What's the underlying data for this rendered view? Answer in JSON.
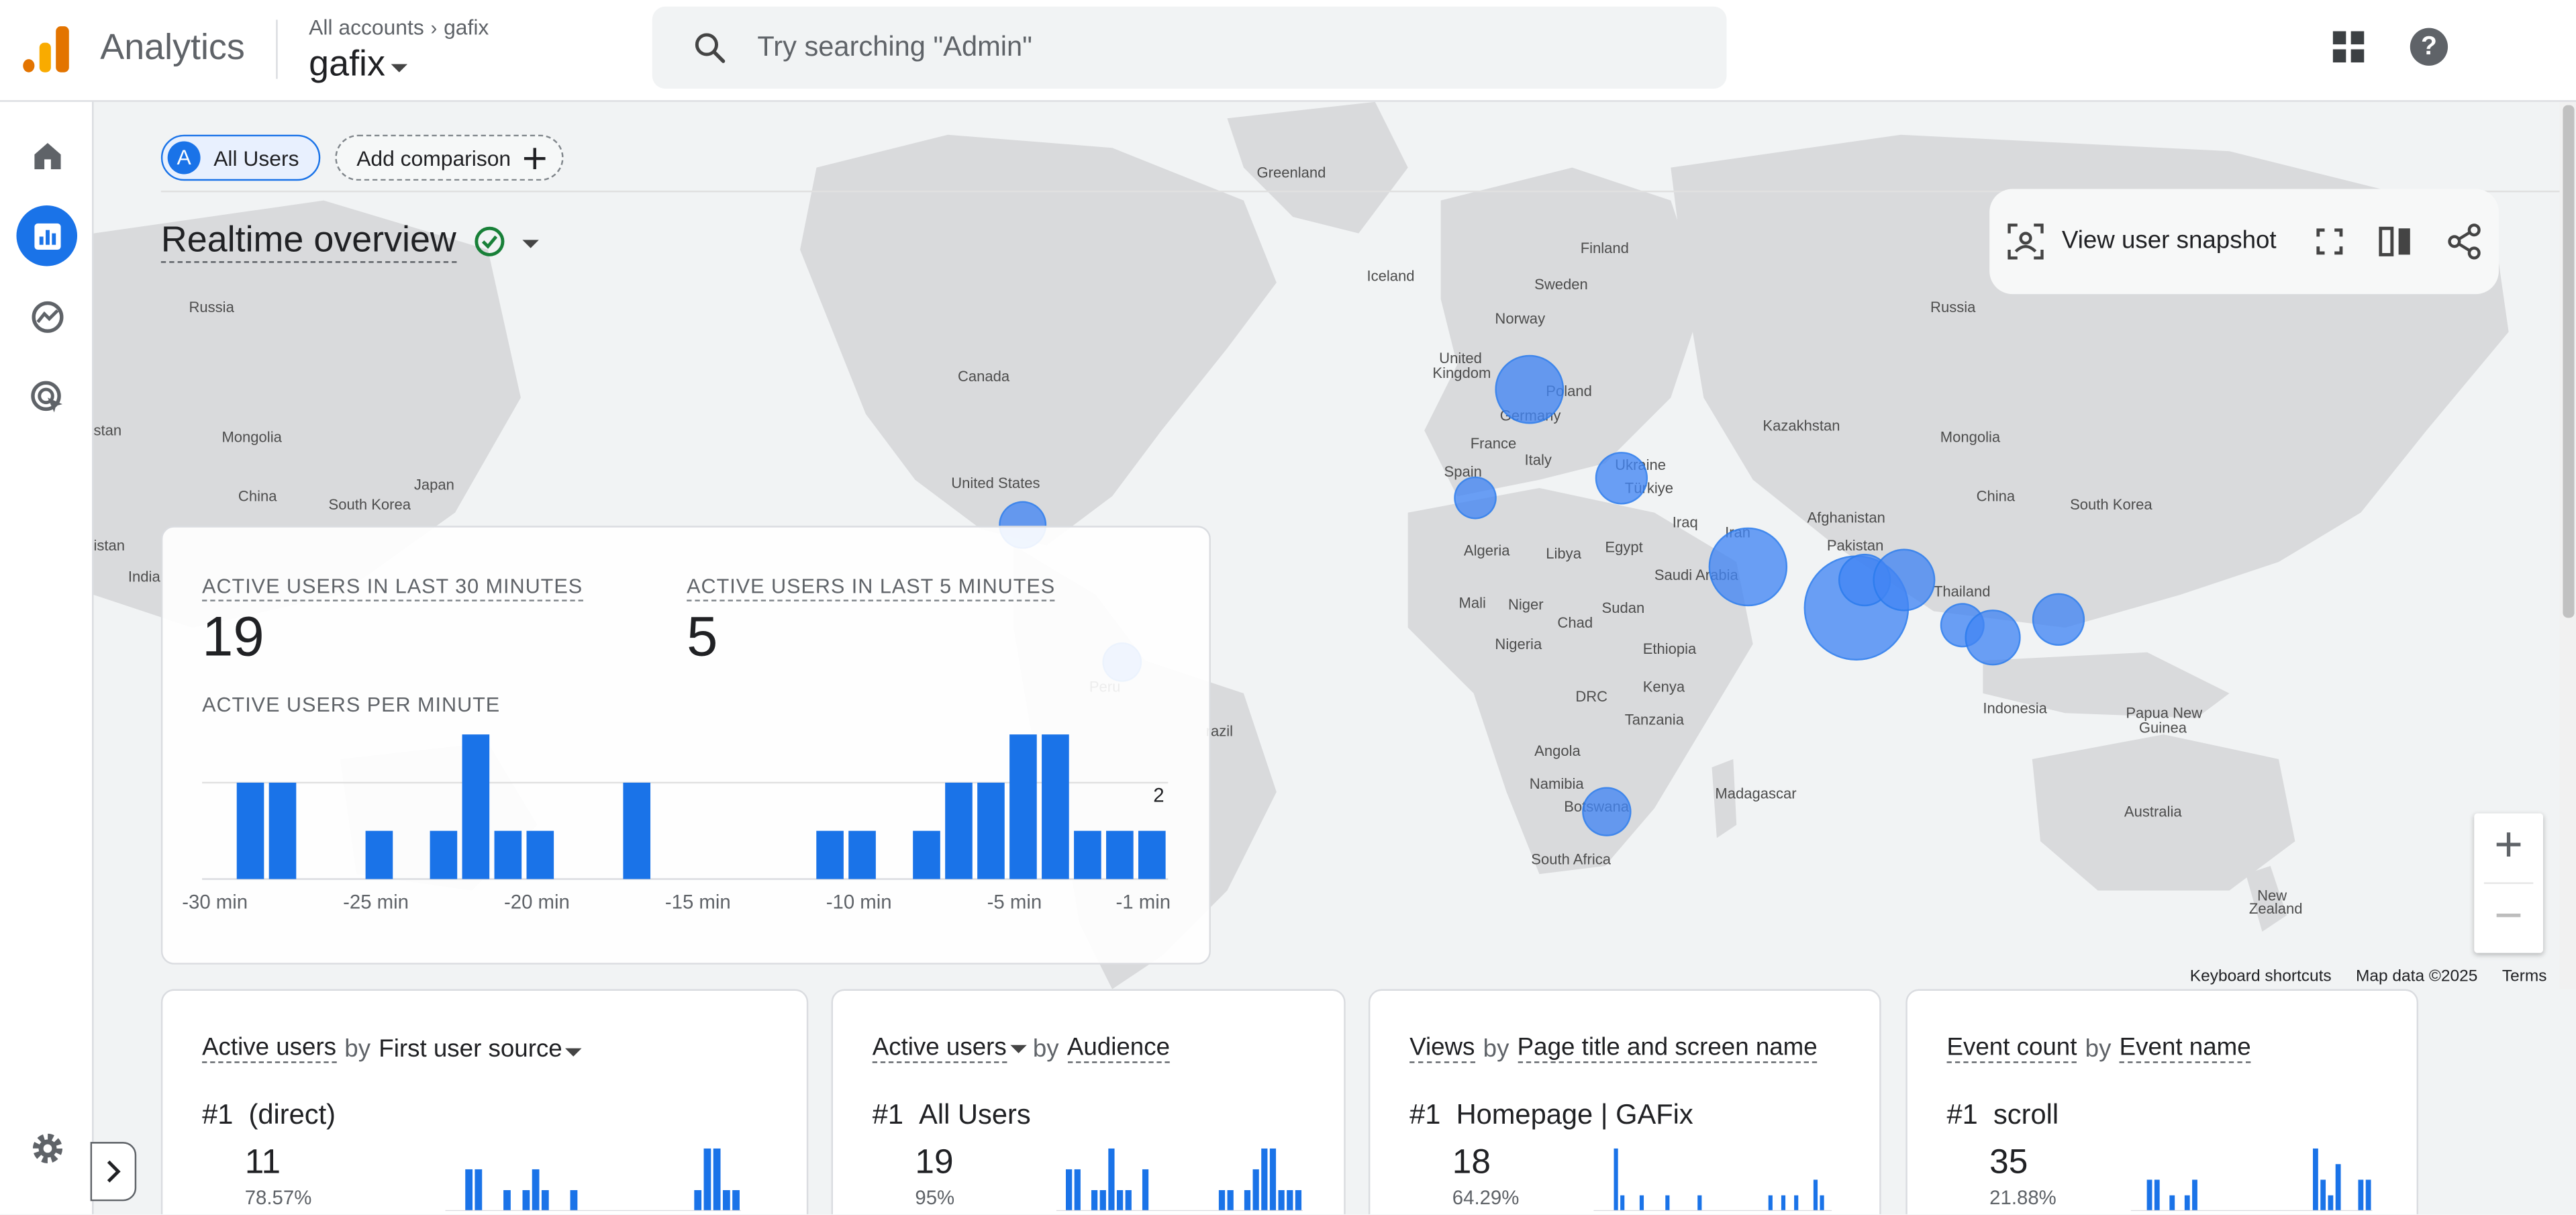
{
  "header": {
    "app_name": "Analytics",
    "breadcrumb_accounts": "All accounts",
    "breadcrumb_account": "gafix",
    "property": "gafix",
    "search_placeholder": "Try searching \"Admin\""
  },
  "nav": {
    "items": [
      "home-icon",
      "reports-icon",
      "explore-icon",
      "advertising-icon"
    ],
    "active": "reports-icon",
    "settings_icon": "gear-icon",
    "expand_icon": "chevron-right-icon"
  },
  "filters": {
    "comparison_badge": "A",
    "comparison": "All Users",
    "add_comparison": "Add comparison"
  },
  "page": {
    "title": "Realtime overview",
    "view_user_snapshot": "View user snapshot"
  },
  "map": {
    "labels": [
      {
        "text": "Greenland"
      },
      {
        "text": "Russia"
      },
      {
        "text": "Russia"
      },
      {
        "text": "Iceland"
      },
      {
        "text": "Finland"
      },
      {
        "text": "Sweden"
      },
      {
        "text": "Norway"
      },
      {
        "text": "United"
      },
      {
        "text": "Kingdom"
      },
      {
        "text": "Poland"
      },
      {
        "text": "Germany"
      },
      {
        "text": "France"
      },
      {
        "text": "Italy"
      },
      {
        "text": "Spain"
      },
      {
        "text": "Ukraine"
      },
      {
        "text": "Türkiye"
      },
      {
        "text": "Kazakhstan"
      },
      {
        "text": "Mongolia"
      },
      {
        "text": "Mongolia"
      },
      {
        "text": "China"
      },
      {
        "text": "China"
      },
      {
        "text": "Japan"
      },
      {
        "text": "South Korea"
      },
      {
        "text": "South Korea"
      },
      {
        "text": "Canada"
      },
      {
        "text": "United States"
      },
      {
        "text": "Algeria"
      },
      {
        "text": "Libya"
      },
      {
        "text": "Egypt"
      },
      {
        "text": "Iraq"
      },
      {
        "text": "Iran"
      },
      {
        "text": "Afghanistan"
      },
      {
        "text": "Pakistan"
      },
      {
        "text": "Saudi Arabia"
      },
      {
        "text": "Mali"
      },
      {
        "text": "Niger"
      },
      {
        "text": "Chad"
      },
      {
        "text": "Sudan"
      },
      {
        "text": "Nigeria"
      },
      {
        "text": "Ethiopia"
      },
      {
        "text": "Kenya"
      },
      {
        "text": "DRC"
      },
      {
        "text": "Tanzania"
      },
      {
        "text": "Angola"
      },
      {
        "text": "Namibia"
      },
      {
        "text": "Botswana"
      },
      {
        "text": "Madagascar"
      },
      {
        "text": "South Africa"
      },
      {
        "text": "Thailand"
      },
      {
        "text": "Indonesia"
      },
      {
        "text": "Papua New"
      },
      {
        "text": "Guinea"
      },
      {
        "text": "Australia"
      },
      {
        "text": "New"
      },
      {
        "text": "Zealand"
      },
      {
        "text": "India"
      },
      {
        "text": "stan"
      },
      {
        "text": "istan"
      },
      {
        "text": "razil"
      },
      {
        "text": "Peru"
      }
    ],
    "zoom_in": "+",
    "zoom_out": "−",
    "keyboard_shortcuts": "Keyboard shortcuts",
    "map_data": "Map data ©2025",
    "terms": "Terms"
  },
  "realtime": {
    "label_30": "ACTIVE USERS IN LAST 30 MINUTES",
    "value_30": "19",
    "label_5": "ACTIVE USERS IN LAST 5 MINUTES",
    "value_5": "5",
    "per_minute_label": "ACTIVE USERS PER MINUTE",
    "y_tick": "2",
    "x_ticks": [
      "-30 min",
      "-25 min",
      "-20 min",
      "-15 min",
      "-10 min",
      "-5 min",
      "-1 min"
    ]
  },
  "chart_data": {
    "type": "bar",
    "title": "ACTIVE USERS PER MINUTE",
    "x": [
      -30,
      -29,
      -28,
      -27,
      -26,
      -25,
      -24,
      -23,
      -22,
      -21,
      -20,
      -19,
      -18,
      -17,
      -16,
      -15,
      -14,
      -13,
      -12,
      -11,
      -10,
      -9,
      -8,
      -7,
      -6,
      -5,
      -4,
      -3,
      -2,
      -1
    ],
    "values": [
      0,
      2,
      2,
      0,
      0,
      1,
      0,
      1,
      3,
      1,
      1,
      0,
      0,
      2,
      0,
      0,
      0,
      0,
      0,
      1,
      1,
      0,
      1,
      2,
      2,
      3,
      3,
      1,
      1,
      1
    ],
    "xtick_labels": [
      "-30 min",
      "-25 min",
      "-20 min",
      "-15 min",
      "-10 min",
      "-5 min",
      "-1 min"
    ],
    "ylim": [
      0,
      3
    ],
    "yticks": [
      2
    ],
    "color": "#1a73e8",
    "grid": true
  },
  "cards": [
    {
      "metric": "Active users",
      "by": "by",
      "dimension": "First user source",
      "rank": "#1",
      "top": "(direct)",
      "count": "11",
      "pct": "78.57%",
      "spark": [
        0,
        0,
        2,
        2,
        0,
        0,
        1,
        0,
        1,
        2,
        1,
        0,
        0,
        1,
        0,
        0,
        0,
        0,
        0,
        0,
        0,
        0,
        0,
        0,
        0,
        0,
        1,
        3,
        3,
        1,
        1
      ]
    },
    {
      "metric": "Active users",
      "by": "by",
      "dimension": "Audience",
      "rank": "#1",
      "top": "All Users",
      "count": "19",
      "pct": "95%",
      "spark": [
        0,
        2,
        2,
        0,
        1,
        1,
        3,
        1,
        1,
        0,
        2,
        0,
        0,
        0,
        0,
        0,
        0,
        0,
        0,
        1,
        1,
        0,
        1,
        2,
        3,
        3,
        1,
        1,
        1
      ]
    },
    {
      "metric": "Views",
      "by": "by",
      "dimension": "Page title and screen name",
      "rank": "#1",
      "top": "Homepage | GAFix",
      "count": "18",
      "pct": "64.29%",
      "spark": [
        0,
        0,
        0,
        4,
        1,
        0,
        0,
        1,
        0,
        0,
        0,
        1,
        0,
        0,
        0,
        0,
        1,
        0,
        0,
        0,
        0,
        0,
        0,
        0,
        0,
        0,
        0,
        1,
        0,
        1,
        0,
        1,
        0,
        0,
        2,
        1,
        0
      ]
    },
    {
      "metric": "Event count",
      "by": "by",
      "dimension": "Event name",
      "rank": "#1",
      "top": "scroll",
      "count": "35",
      "pct": "21.88%",
      "spark": [
        0,
        0,
        2,
        2,
        0,
        1,
        0,
        1,
        2,
        0,
        0,
        0,
        0,
        0,
        0,
        0,
        0,
        0,
        0,
        0,
        0,
        0,
        0,
        0,
        4,
        2,
        1,
        3,
        0,
        0,
        2,
        2
      ]
    }
  ],
  "colors": {
    "accent": "#1a73e8",
    "bubble": "#4285f4",
    "logo_orange": "#e37400",
    "logo_yellow": "#f9ab00",
    "check_green": "#188038"
  }
}
